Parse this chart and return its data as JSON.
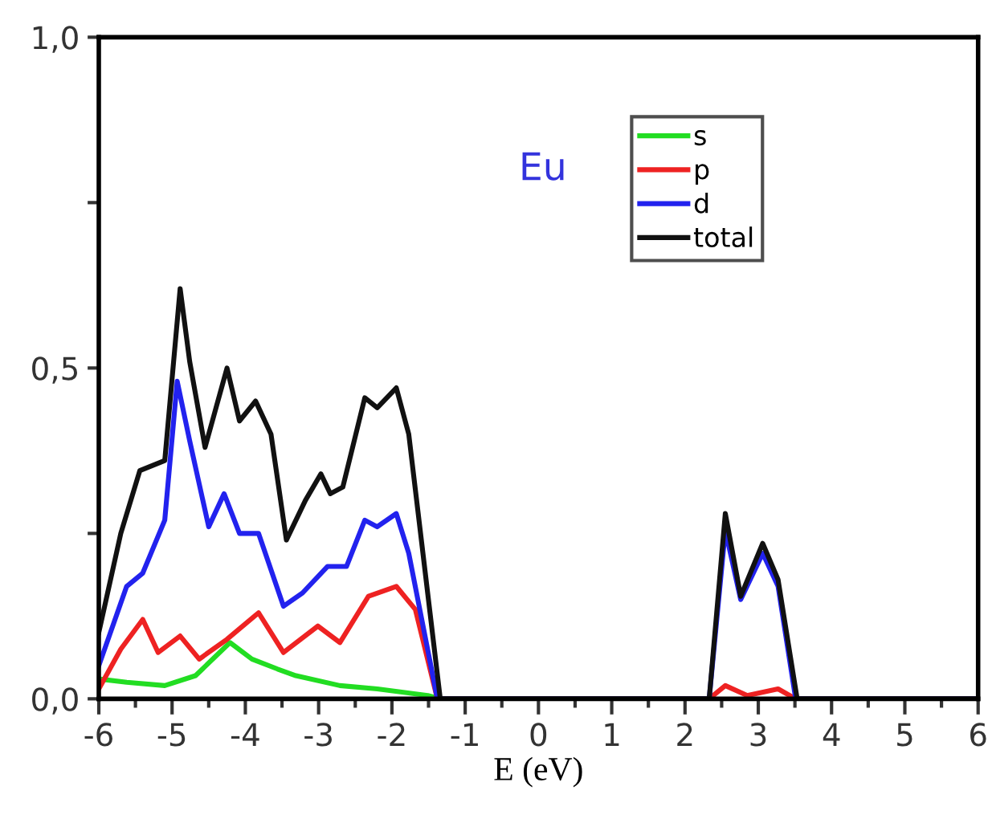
{
  "chart_data": {
    "type": "line",
    "xlabel": "E (eV)",
    "annotations": [
      "Eu"
    ],
    "xlim": [
      -6,
      6
    ],
    "ylim": [
      0,
      1.0
    ],
    "xticks": [
      -6,
      -5,
      -4,
      -3,
      -2,
      -1,
      0,
      1,
      2,
      3,
      4,
      5,
      6
    ],
    "yticks": [
      {
        "value": 0,
        "label": "0,0"
      },
      {
        "value": 0.25,
        "label": null
      },
      {
        "value": 0.5,
        "label": "0,5"
      },
      {
        "value": 0.75,
        "label": null
      },
      {
        "value": 1.0,
        "label": "1,0"
      }
    ],
    "legend": "top right",
    "grid": false,
    "marker": "none",
    "line_style": "solid",
    "series": [
      {
        "name": "s",
        "color": "#22dd22",
        "x": [
          -6,
          -5.62,
          -5.1,
          -4.68,
          -4.21,
          -3.91,
          -3.56,
          -3.31,
          -2.71,
          -2.2,
          -1.51,
          -1.34
        ],
        "values": [
          0.03,
          0.025,
          0.02,
          0.035,
          0.085,
          0.06,
          0.045,
          0.035,
          0.02,
          0.015,
          0.005,
          0
        ]
      },
      {
        "name": "p",
        "color": "#ee2222",
        "x": [
          -6,
          -5.7,
          -5.4,
          -5.19,
          -4.89,
          -4.63,
          -4.25,
          -3.82,
          -3.48,
          -3.01,
          -2.71,
          -2.32,
          -1.94,
          -1.68,
          -1.38,
          2.33,
          2.55,
          2.85,
          3.27,
          3.51,
          6
        ],
        "values": [
          0.015,
          0.075,
          0.12,
          0.07,
          0.095,
          0.06,
          0.09,
          0.13,
          0.07,
          0.11,
          0.085,
          0.155,
          0.17,
          0.135,
          0,
          0,
          0.02,
          0.005,
          0.015,
          0,
          0
        ]
      },
      {
        "name": "d",
        "color": "#2222ee",
        "x": [
          -6,
          -5.62,
          -5.4,
          -5.1,
          -4.93,
          -4.76,
          -4.5,
          -4.29,
          -4.08,
          -3.82,
          -3.48,
          -3.22,
          -2.88,
          -2.62,
          -2.37,
          -2.2,
          -1.94,
          -1.77,
          -1.38,
          2.33,
          2.55,
          2.76,
          3.06,
          3.27,
          3.51,
          6
        ],
        "values": [
          0.05,
          0.17,
          0.19,
          0.27,
          0.48,
          0.39,
          0.26,
          0.31,
          0.25,
          0.25,
          0.14,
          0.16,
          0.2,
          0.2,
          0.27,
          0.26,
          0.28,
          0.22,
          0,
          0,
          0.255,
          0.15,
          0.22,
          0.17,
          0,
          0
        ]
      },
      {
        "name": "total",
        "color": "#111111",
        "x": [
          -6,
          -5.7,
          -5.44,
          -5.1,
          -4.89,
          -4.76,
          -4.55,
          -4.25,
          -4.08,
          -3.86,
          -3.65,
          -3.44,
          -3.18,
          -2.97,
          -2.84,
          -2.67,
          -2.37,
          -2.2,
          -1.94,
          -1.77,
          -1.34,
          2.33,
          2.55,
          2.76,
          3.06,
          3.27,
          3.53,
          6
        ],
        "values": [
          0.1,
          0.25,
          0.345,
          0.36,
          0.62,
          0.51,
          0.38,
          0.5,
          0.42,
          0.45,
          0.4,
          0.24,
          0.3,
          0.34,
          0.31,
          0.32,
          0.455,
          0.44,
          0.47,
          0.4,
          0,
          0,
          0.28,
          0.155,
          0.235,
          0.18,
          0,
          0
        ]
      }
    ]
  }
}
